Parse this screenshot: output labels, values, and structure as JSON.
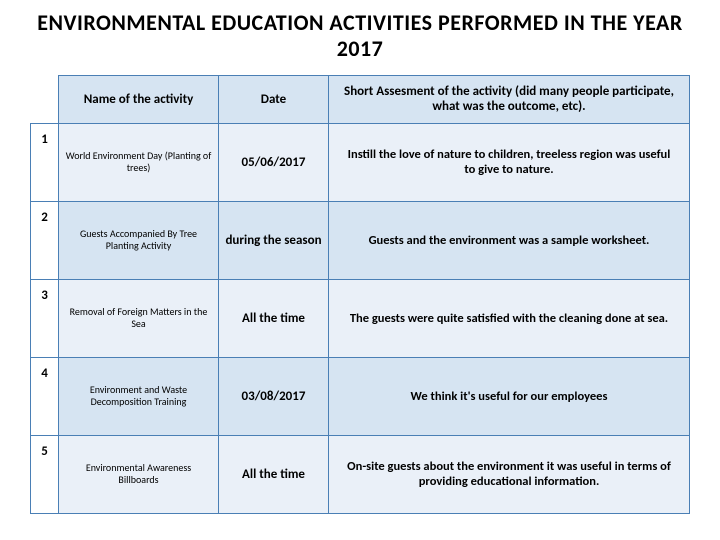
{
  "title": "ENVIRONMENTAL EDUCATION ACTIVITIES PERFORMED IN THE YEAR 2017",
  "headers": {
    "name": "Name of the activity",
    "date": "Date",
    "assessment": "Short Assesment of the activity (did many people participate, what was the outcome, etc)."
  },
  "colors": {
    "header_bg": "#d6e4f2",
    "row_odd_bg": "#eaf0f8",
    "row_even_bg": "#d6e4f2",
    "border": "#4a7fb5",
    "background": "#ffffff"
  },
  "rows": [
    {
      "num": "1",
      "name": "World Environment Day (Planting of trees)",
      "date": "05/06/2017",
      "assessment": "Instill the love of nature to children, treeless region was useful to give to nature."
    },
    {
      "num": "2",
      "name": "Guests Accompanied By Tree Planting Activity",
      "date": "during the season",
      "assessment": "Guests and the environment was a sample worksheet."
    },
    {
      "num": "3",
      "name": "Removal of Foreign Matters in the Sea",
      "date": "All the time",
      "assessment": "The guests were quite satisfied with the cleaning done at sea."
    },
    {
      "num": "4",
      "name": "Environment and Waste Decomposition Training",
      "date": "03/08/2017",
      "assessment": "We think it's useful for our employees"
    },
    {
      "num": "5",
      "name": "Environmental Awareness Billboards",
      "date": "All the time",
      "assessment": "On-site guests about the environment it was useful in terms of providing educational information."
    }
  ]
}
